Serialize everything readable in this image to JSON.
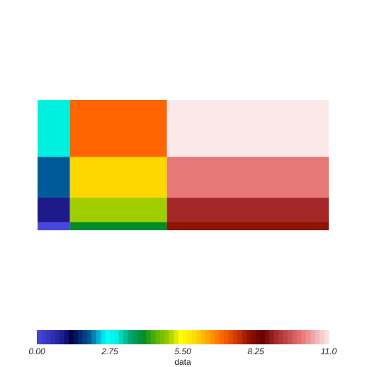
{
  "chart_data": {
    "type": "heatmap",
    "x_edges": [
      0,
      1,
      4,
      9
    ],
    "y_edges": [
      0,
      1,
      4,
      9,
      16
    ],
    "values": [
      [
        0,
        4,
        8
      ],
      [
        1,
        5,
        9
      ],
      [
        2,
        6,
        10
      ],
      [
        3,
        7,
        11
      ]
    ],
    "colorscale": [
      [
        0,
        "#4848e0"
      ],
      [
        0.7,
        "#2a2aa8"
      ],
      [
        1,
        "#1e1a8c"
      ],
      [
        1.3,
        "#00004a"
      ],
      [
        2,
        "#005a9a"
      ],
      [
        2.6,
        "#00ffff"
      ],
      [
        3,
        "#00f0e0"
      ],
      [
        3.5,
        "#00a878"
      ],
      [
        4,
        "#008c28"
      ],
      [
        4.5,
        "#5ab400"
      ],
      [
        5,
        "#a0cd00"
      ],
      [
        5.4,
        "#ffff00"
      ],
      [
        6,
        "#ffd700"
      ],
      [
        7,
        "#ff6400"
      ],
      [
        7.6,
        "#c83200"
      ],
      [
        8,
        "#8c1400"
      ],
      [
        8.5,
        "#640000"
      ],
      [
        9,
        "#a52828"
      ],
      [
        10,
        "#e87878"
      ],
      [
        11,
        "#fbe9e9"
      ]
    ],
    "clim": [
      0,
      11
    ],
    "cticks": [
      {
        "value": 0,
        "label": "0.00"
      },
      {
        "value": 2.75,
        "label": "2.75"
      },
      {
        "value": 5.5,
        "label": "5.50"
      },
      {
        "value": 8.25,
        "label": "8.25"
      },
      {
        "value": 11,
        "label": "11.0"
      }
    ],
    "colorbar_title": "data"
  }
}
